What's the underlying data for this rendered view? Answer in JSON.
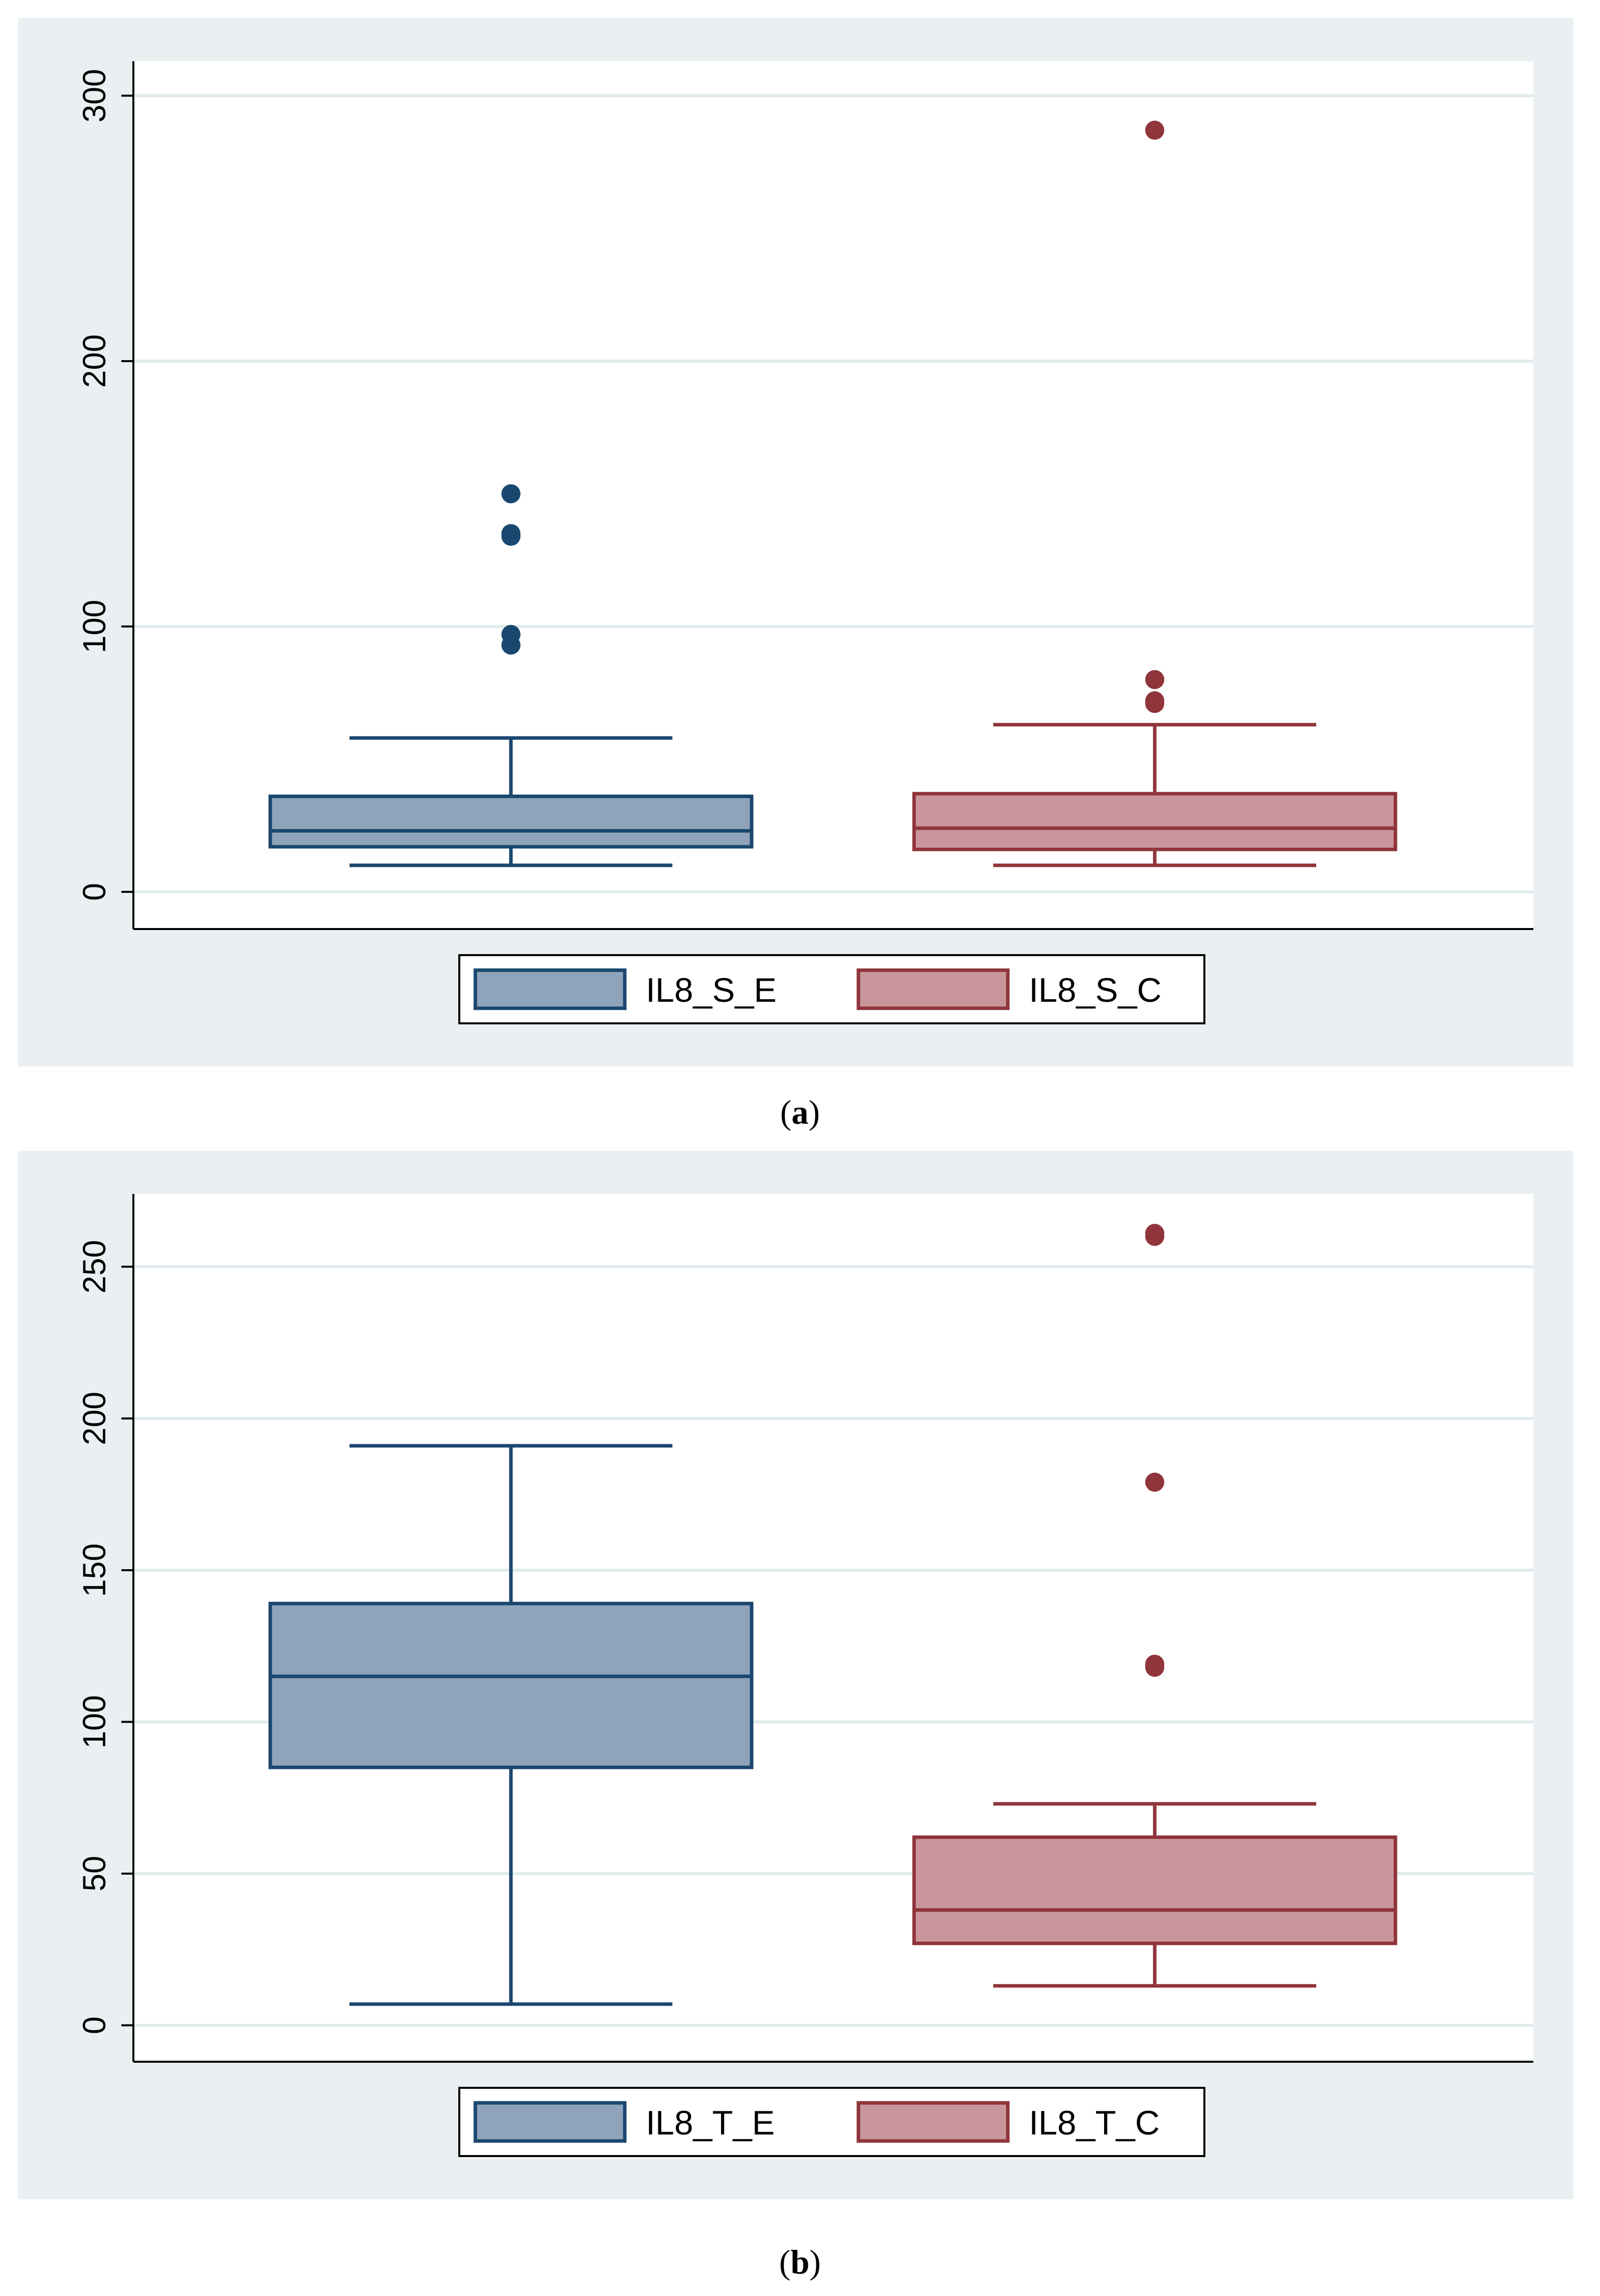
{
  "colors": {
    "panel_bg": "#eaf0f2",
    "plot_bg": "#ffffff",
    "grid": "#e1ebee",
    "s1_fill": "#8fa4ba",
    "s1_stroke": "#1a476f",
    "s2_fill": "#c9979b",
    "s2_stroke": "#90353b"
  },
  "chart_data": [
    {
      "type": "box",
      "panel": "a",
      "caption_open": "(",
      "caption_letter": "a",
      "caption_close": ")",
      "ylim": [
        -14,
        313
      ],
      "yticks": [
        0,
        100,
        200,
        300
      ],
      "ytick_labels": [
        "0",
        "100",
        "200",
        "300"
      ],
      "series": [
        {
          "name": "IL8_S_E",
          "whisker_low": 10,
          "q1": 17,
          "median": 23,
          "q3": 36,
          "whisker_high": 58,
          "outliers": [
            93,
            97,
            134,
            135,
            150
          ]
        },
        {
          "name": "IL8_S_C",
          "whisker_low": 10,
          "q1": 16,
          "median": 24,
          "q3": 37,
          "whisker_high": 63,
          "outliers": [
            71,
            72,
            80,
            287
          ]
        }
      ],
      "legend": [
        "IL8_S_E",
        "IL8_S_C"
      ]
    },
    {
      "type": "box",
      "panel": "b",
      "caption_open": "(",
      "caption_letter": "b",
      "caption_close": ")",
      "ylim": [
        -12,
        274
      ],
      "yticks": [
        0,
        50,
        100,
        150,
        200,
        250
      ],
      "ytick_labels": [
        "0",
        "50",
        "100",
        "150",
        "200",
        "250"
      ],
      "series": [
        {
          "name": "IL8_T_E",
          "whisker_low": 7,
          "q1": 85,
          "median": 115,
          "q3": 139,
          "whisker_high": 191,
          "outliers": []
        },
        {
          "name": "IL8_T_C",
          "whisker_low": 13,
          "q1": 27,
          "median": 38,
          "q3": 62,
          "whisker_high": 73,
          "outliers": [
            118,
            119,
            179,
            260,
            261
          ]
        }
      ],
      "legend": [
        "IL8_T_E",
        "IL8_T_C"
      ]
    }
  ]
}
